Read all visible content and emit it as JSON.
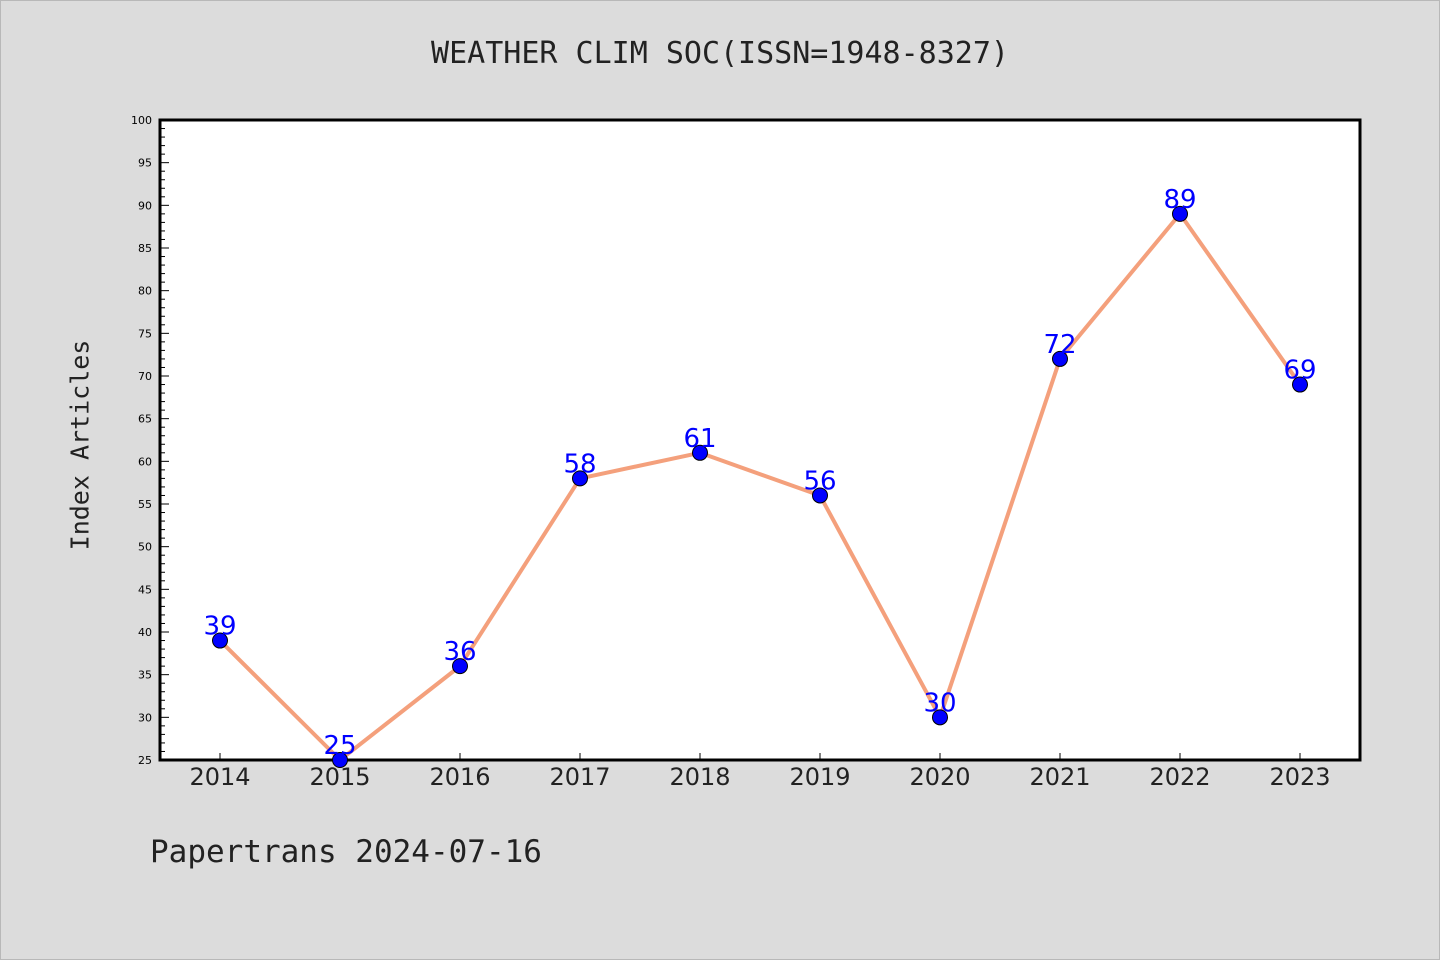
{
  "chart_data": {
    "type": "line",
    "title": "WEATHER CLIM SOC(ISSN=1948-8327)",
    "xlabel": "",
    "ylabel": "Index Articles",
    "categories": [
      "2014",
      "2015",
      "2016",
      "2017",
      "2018",
      "2019",
      "2020",
      "2021",
      "2022",
      "2023"
    ],
    "series": [
      {
        "values": [
          39,
          25,
          36,
          58,
          61,
          56,
          30,
          72,
          89,
          69
        ]
      }
    ],
    "data_labels": [
      "39",
      "25",
      "36",
      "58",
      "61",
      "56",
      "30",
      "72",
      "89",
      "69"
    ],
    "ylim": [
      25,
      100
    ],
    "y_ticks": [
      "25",
      "30",
      "35",
      "40",
      "45",
      "50",
      "55",
      "60",
      "65",
      "70",
      "75",
      "80",
      "85",
      "90",
      "95",
      "100"
    ],
    "grid": false,
    "colors": {
      "line": "#f4a07c",
      "marker": "#0000ff",
      "label": "#0000ff",
      "background": "#dcdcdc",
      "plot_background": "#ffffff"
    }
  },
  "footer": "Papertrans 2024-07-16"
}
